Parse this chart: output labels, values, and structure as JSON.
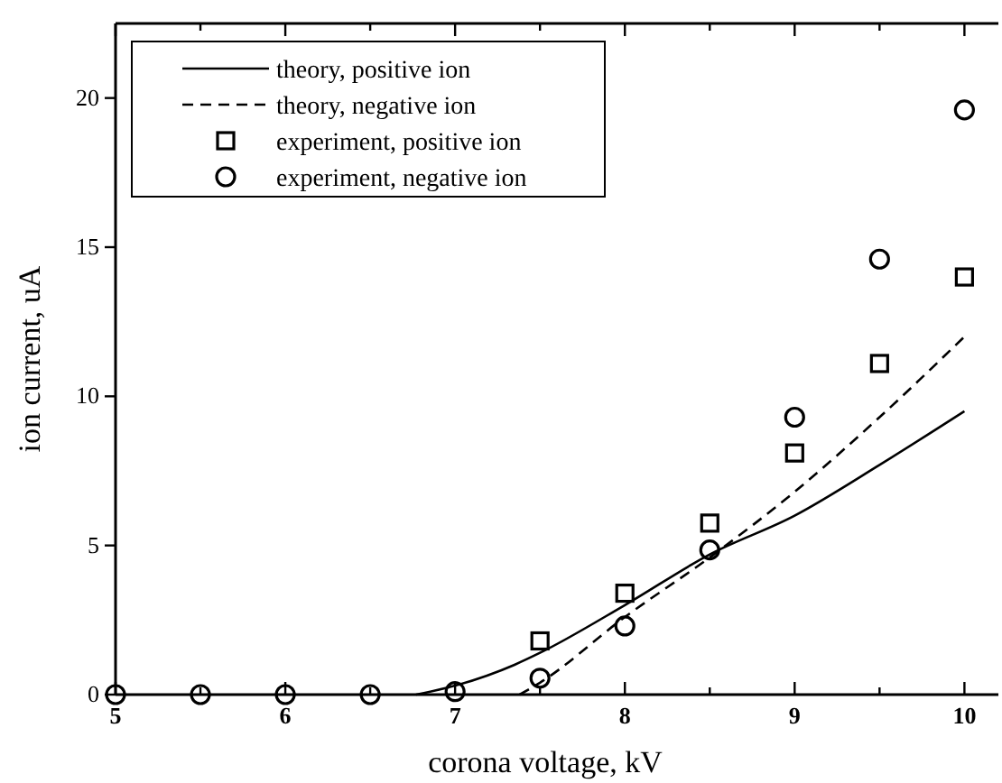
{
  "chart_data": {
    "type": "line",
    "xlabel": "corona voltage, kV",
    "ylabel": "ion current, uA",
    "xlim": [
      5,
      10.2
    ],
    "ylim": [
      0,
      22.5
    ],
    "xticks": [
      5,
      {
        "value": 5.5,
        "label": null
      },
      6,
      {
        "value": 6.5,
        "label": null
      },
      7,
      {
        "value": 7.5,
        "label": null
      },
      8,
      {
        "value": 8.5,
        "label": null
      },
      9,
      {
        "value": 9.5,
        "label": null
      },
      10
    ],
    "yticks": [
      0,
      5,
      10,
      15,
      20
    ],
    "grid": false,
    "legend": "top left",
    "series": [
      {
        "name": "theory, positive ion",
        "line_style": "solid",
        "marker": "none",
        "color": "#000000",
        "x": [
          6.77,
          7,
          7.35,
          7.5,
          8,
          8.5,
          9,
          9.5,
          10
        ],
        "values": [
          0,
          0.3,
          1.0,
          1.4,
          3.0,
          4.7,
          6.0,
          7.7,
          9.5
        ]
      },
      {
        "name": "theory, negative ion",
        "line_style": "dashed",
        "marker": "none",
        "color": "#000000",
        "x": [
          7.38,
          7.5,
          8,
          8.5,
          9,
          9.5,
          10
        ],
        "values": [
          0,
          0.4,
          2.6,
          4.6,
          6.8,
          9.3,
          12.0
        ]
      },
      {
        "name": "experiment, positive ion",
        "type": "scatter",
        "marker": "square",
        "color": "#000000",
        "x": [
          7.5,
          8,
          8.5,
          9,
          9.5,
          10
        ],
        "values": [
          1.8,
          3.4,
          5.75,
          8.1,
          11.1,
          14.0
        ]
      },
      {
        "name": "experiment, negative ion",
        "type": "scatter",
        "marker": "circle",
        "color": "#000000",
        "x": [
          5,
          5.5,
          6,
          6.5,
          7,
          7.5,
          8,
          8.5,
          9,
          9.5,
          10
        ],
        "values": [
          0,
          0,
          0,
          0,
          0.1,
          0.55,
          2.3,
          4.85,
          9.3,
          14.6,
          19.6
        ]
      }
    ]
  }
}
